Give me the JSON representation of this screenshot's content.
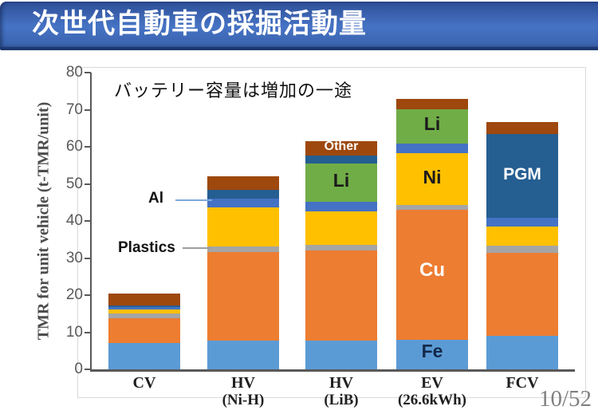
{
  "slide": {
    "title": "次世代自動車の採掘活動量",
    "page_number": "10/52"
  },
  "chart_data": {
    "type": "bar",
    "stacked": true,
    "annotation": "バッテリー容量は増加の一途",
    "ylabel": "TMR for unit vehicle (t-TMR/unit)",
    "ylim": [
      0,
      80
    ],
    "yticks": [
      0,
      10,
      20,
      30,
      40,
      50,
      60,
      70,
      80
    ],
    "grid": false,
    "legend_position": "none",
    "categories": [
      {
        "label": "CV",
        "sub": ""
      },
      {
        "label": "HV",
        "sub": "(Ni-H)"
      },
      {
        "label": "HV",
        "sub": "(LiB)"
      },
      {
        "label": "EV",
        "sub": "(26.6kWh)"
      },
      {
        "label": "FCV",
        "sub": ""
      }
    ],
    "series": [
      {
        "name": "Fe",
        "color": "#5B9BD5",
        "values": [
          7.1,
          7.7,
          7.7,
          8.0,
          9.0
        ]
      },
      {
        "name": "Cu",
        "color": "#ED7D31",
        "values": [
          6.7,
          23.9,
          24.3,
          35.0,
          22.4
        ]
      },
      {
        "name": "Plastics",
        "color": "#A5A5A5",
        "values": [
          1.3,
          1.5,
          1.5,
          1.2,
          2.0
        ]
      },
      {
        "name": "Ni",
        "color": "#FFC000",
        "values": [
          1.0,
          10.6,
          9.1,
          14.0,
          5.1
        ]
      },
      {
        "name": "Al",
        "color": "#4472C4",
        "values": [
          0.6,
          2.3,
          2.6,
          2.7,
          2.4
        ]
      },
      {
        "name": "Li",
        "color": "#70AD47",
        "values": [
          0,
          0,
          10.3,
          9.2,
          0
        ]
      },
      {
        "name": "PGM",
        "color": "#255E91",
        "values": [
          0.5,
          2.4,
          2.1,
          0,
          22.5
        ]
      },
      {
        "name": "Other",
        "color": "#9E480E",
        "values": [
          3.2,
          3.6,
          3.9,
          2.8,
          3.3
        ]
      }
    ],
    "bar_labels": [
      {
        "bar": 2,
        "text": "Other",
        "color": "#FFFFFF",
        "mid": 59.5,
        "size": 16
      },
      {
        "bar": 2,
        "text": "Li",
        "color": "#1A1A1A",
        "mid": 50.3,
        "size": 23
      },
      {
        "bar": 3,
        "text": "Li",
        "color": "#1A1A1A",
        "mid": 65.6,
        "size": 23
      },
      {
        "bar": 3,
        "text": "Ni",
        "color": "#1A1A1A",
        "mid": 51.2,
        "size": 23
      },
      {
        "bar": 3,
        "text": "Cu",
        "color": "#FFFFFF",
        "mid": 26.0,
        "size": 24
      },
      {
        "bar": 3,
        "text": "Fe",
        "color": "#13294B",
        "mid": 4.3,
        "size": 23
      },
      {
        "bar": 4,
        "text": "PGM",
        "color": "#FFFFFF",
        "mid": 51.8,
        "size": 21
      }
    ],
    "callouts": {
      "al": {
        "text": "Al",
        "target_series": "Al",
        "target_bar": 1
      },
      "plastics": {
        "text": "Plastics",
        "target_series": "Plastics",
        "target_bar": 1
      }
    }
  }
}
